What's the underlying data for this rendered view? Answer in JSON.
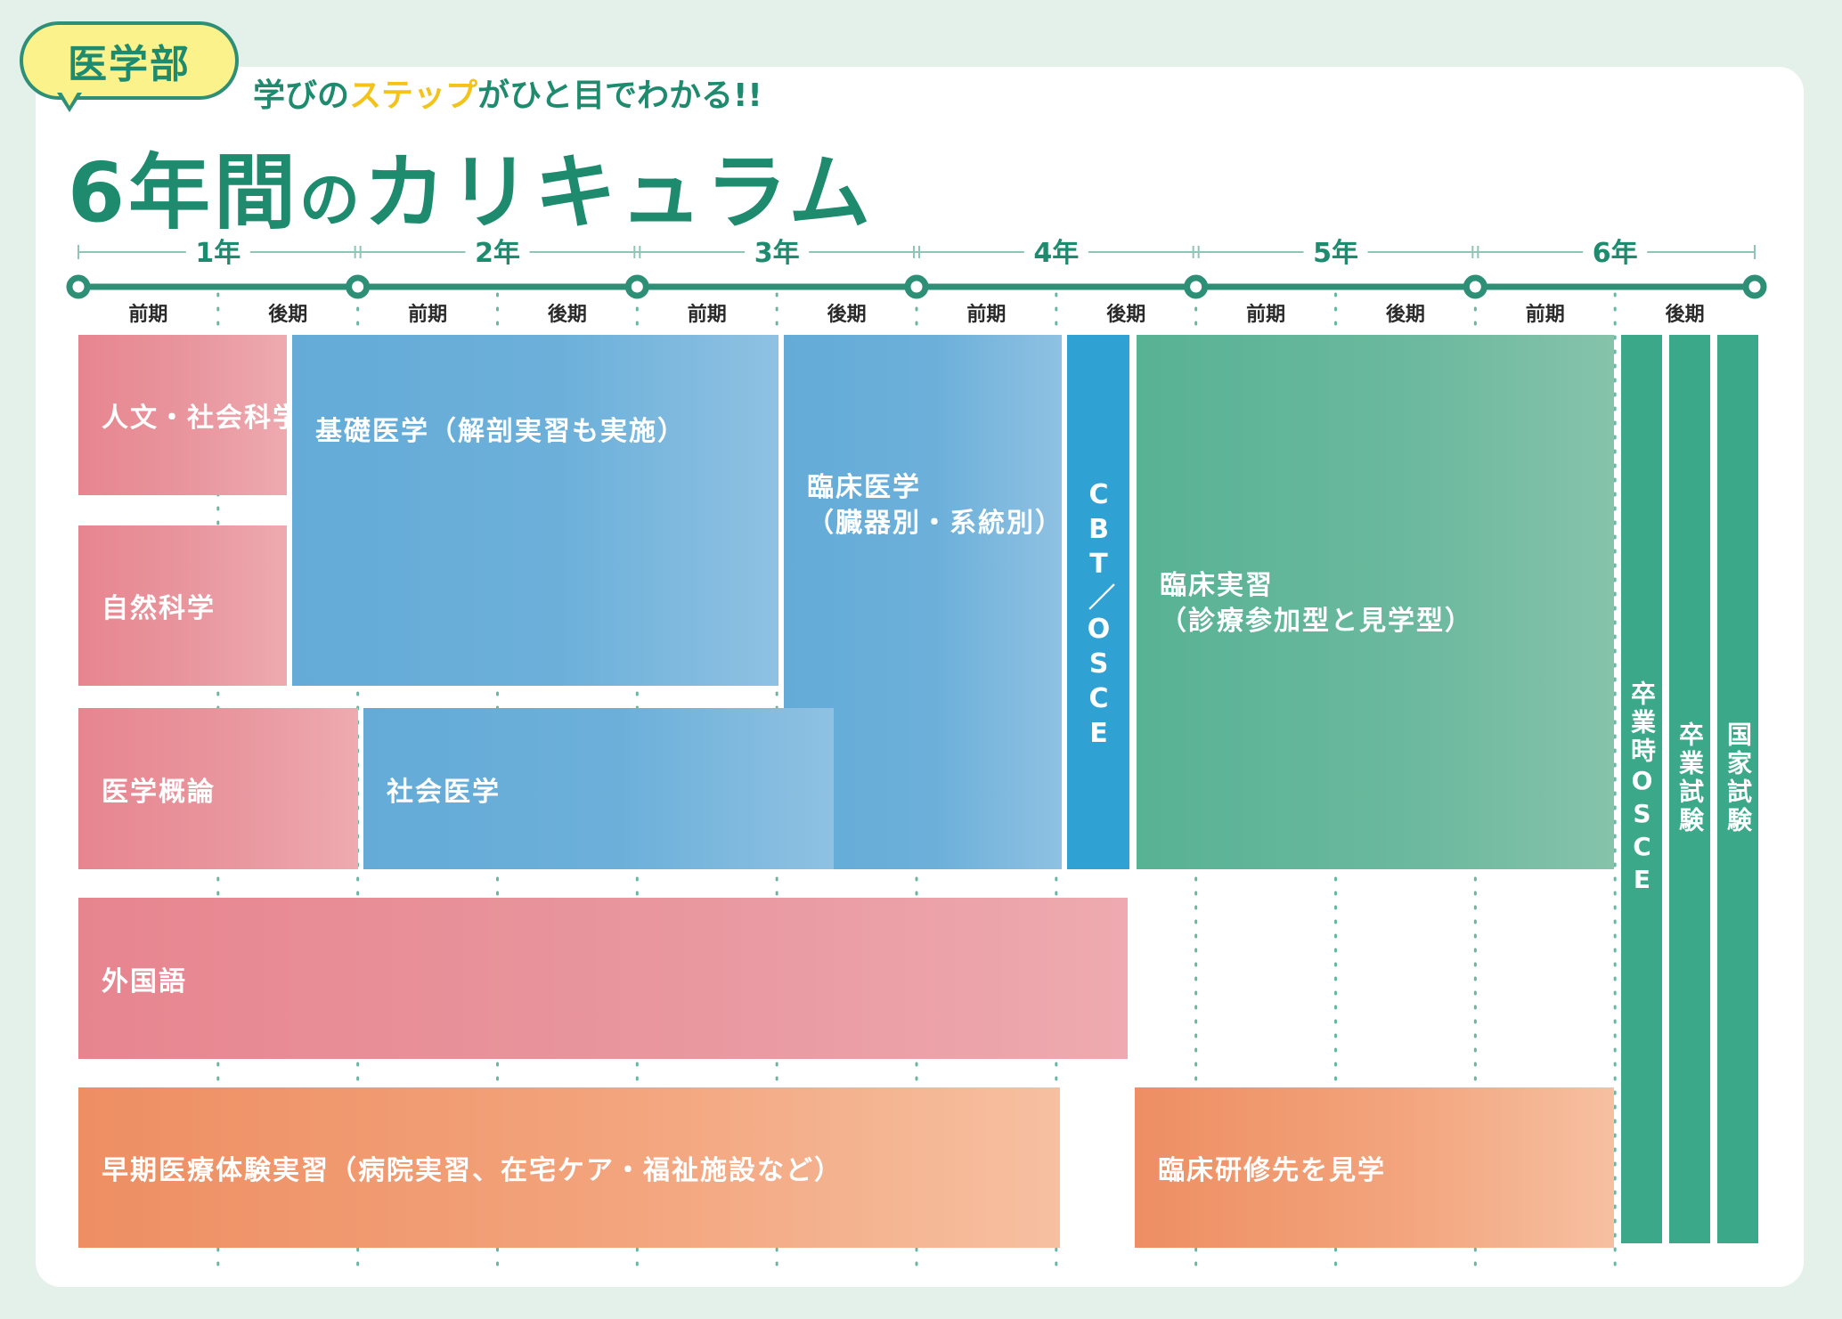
{
  "header": {
    "badge": "医学部",
    "subtitle_pre": "学びの",
    "subtitle_highlight": "ステップ",
    "subtitle_post": "がひと目でわかる!!",
    "title_num": "6",
    "title_kanji": "年間",
    "title_no": "の",
    "title_rest": "カリキュラム"
  },
  "years": [
    "1年",
    "2年",
    "3年",
    "4年",
    "5年",
    "6年"
  ],
  "terms": [
    "前期",
    "後期",
    "前期",
    "後期",
    "前期",
    "後期",
    "前期",
    "後期",
    "前期",
    "後期",
    "前期",
    "後期"
  ],
  "blocks": [
    {
      "id": "jinbun",
      "label": "人文・社会科学",
      "color": "pink"
    },
    {
      "id": "shizen",
      "label": "自然科学",
      "color": "pink"
    },
    {
      "id": "kiso",
      "label": "基礎医学（解剖実習も実施）",
      "color": "blue"
    },
    {
      "id": "rinsho-igaku",
      "label": "臨床医学\n（臓器別・系統別）",
      "color": "blue"
    },
    {
      "id": "cbt",
      "label": "CBT／OSCE",
      "color": "cbt"
    },
    {
      "id": "rinsho-jisshu",
      "label": "臨床実習\n（診療参加型と見学型）",
      "color": "green"
    },
    {
      "id": "igaku-gairon",
      "label": "医学概論",
      "color": "pink"
    },
    {
      "id": "shakai-igaku",
      "label": "社会医学",
      "color": "blue"
    },
    {
      "id": "gaikokugo",
      "label": "外国語",
      "color": "pink"
    },
    {
      "id": "soki",
      "label": "早期医療体験実習（病院実習、在宅ケア・福祉施設など）",
      "color": "orange"
    },
    {
      "id": "kengaku",
      "label": "臨床研修先を見学",
      "color": "orange"
    },
    {
      "id": "sotsugyo-osce",
      "label": "卒業時OSCE",
      "color": "dark"
    },
    {
      "id": "sotsugyo-shiken",
      "label": "卒業試験",
      "color": "dark"
    },
    {
      "id": "kokka-shiken",
      "label": "国家試験",
      "color": "dark"
    }
  ],
  "colors": {
    "accent": "#1e8a6e",
    "timeline": "#2c8f76",
    "badge_fill": "#fbf28c",
    "highlight": "#f3c31a",
    "background": "#e3f1ea"
  }
}
